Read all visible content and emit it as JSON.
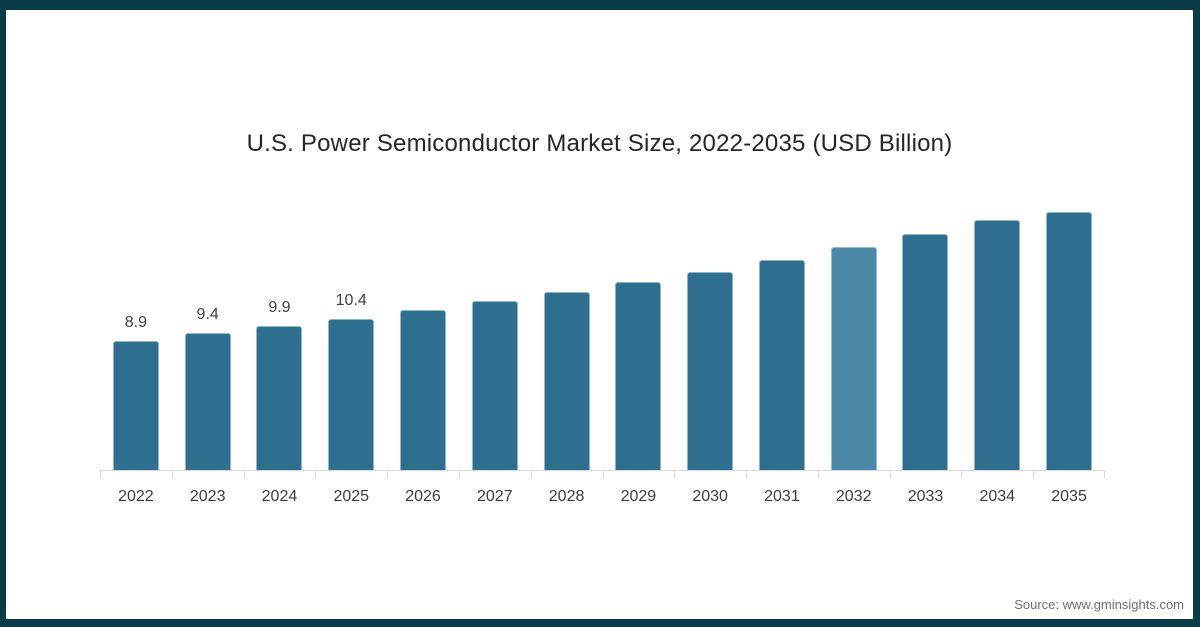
{
  "frame": {
    "border_color": "#0a3b48",
    "background": "#ffffff"
  },
  "title": "U.S. Power Semiconductor Market Size, 2022-2035 (USD Billion)",
  "source": "Source: www.gminsights.com",
  "chart_data": {
    "type": "bar",
    "title": "U.S. Power Semiconductor Market Size, 2022-2035 (USD Billion)",
    "categories": [
      "2022",
      "2023",
      "2024",
      "2025",
      "2026",
      "2027",
      "2028",
      "2029",
      "2030",
      "2031",
      "2032",
      "2033",
      "2034",
      "2035"
    ],
    "values": [
      8.9,
      9.4,
      9.9,
      10.4,
      11.0,
      11.6,
      12.2,
      12.9,
      13.6,
      14.4,
      15.3,
      16.2,
      17.2,
      18.3
    ],
    "data_labels": [
      "8.9",
      "9.4",
      "9.9",
      "10.4",
      "",
      "",
      "",
      "",
      "",
      "",
      "",
      "",
      "",
      ""
    ],
    "xlabel": "",
    "ylabel": "",
    "ylim": [
      0,
      18.5
    ],
    "grid": false,
    "legend": "none",
    "bar_color": "#2e6f90",
    "highlight_color": "#4c89a8",
    "highlight_index": 10,
    "axis_color": "#d9d9d9"
  }
}
